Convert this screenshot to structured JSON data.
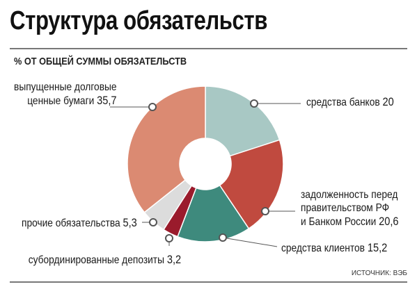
{
  "header": {
    "title": "Структура обязательств",
    "subtitle": "% ОТ ОБЩЕЙ СУММЫ ОБЯЗАТЕЛЬСТВ",
    "source": "ИСТОЧНИК: ВЭБ"
  },
  "chart_data": {
    "type": "pie",
    "variant": "donut",
    "title": "Структура обязательств",
    "subtitle": "% ОТ ОБЩЕЙ СУММЫ ОБЯЗАТЕЛЬСТВ",
    "unit": "%",
    "slices": [
      {
        "label_lines": [
          "средства банков"
        ],
        "value": 20,
        "value_text": "20",
        "color": "#a8c8c4"
      },
      {
        "label_lines": [
          "задолженность перед",
          "правительством РФ",
          "и Банком России"
        ],
        "value": 20.6,
        "value_text": "20,6",
        "color": "#c04a3f"
      },
      {
        "label_lines": [
          "средства клиентов"
        ],
        "value": 15.2,
        "value_text": "15,2",
        "color": "#3e8a7d"
      },
      {
        "label_lines": [
          "субординированные депозиты"
        ],
        "value": 3.2,
        "value_text": "3,2",
        "color": "#9a1b2c"
      },
      {
        "label_lines": [
          "прочие обязательства"
        ],
        "value": 5.3,
        "value_text": "5,3",
        "color": "#dcdcdc"
      },
      {
        "label_lines": [
          "выпущенные долговые",
          "ценные бумаги"
        ],
        "value": 35.7,
        "value_text": "35,7",
        "color": "#db8a72"
      }
    ]
  }
}
